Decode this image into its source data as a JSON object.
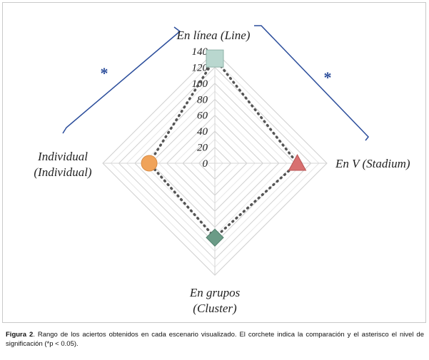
{
  "chart_data": {
    "type": "radar",
    "axes": [
      {
        "label_line1": "En línea (Line)",
        "label_line2": ""
      },
      {
        "label_line1": "En V (Stadium)",
        "label_line2": ""
      },
      {
        "label_line1": "En grupos",
        "label_line2": "(Cluster)"
      },
      {
        "label_line1": "Individual",
        "label_line2": "(Individual)"
      }
    ],
    "values": [
      131,
      103,
      93,
      82
    ],
    "rlim": [
      0,
      140
    ],
    "ticks": [
      0,
      20,
      40,
      60,
      80,
      100,
      120,
      140
    ],
    "minor_gridlines_per_major": 2,
    "markers": [
      {
        "shape": "square",
        "color": "#b9d7cf"
      },
      {
        "shape": "triangle",
        "color": "#d87070"
      },
      {
        "shape": "diamond",
        "color": "#6b9b87"
      },
      {
        "shape": "circle",
        "color": "#f0a35a"
      }
    ],
    "line_style": "dotted",
    "line_color": "#555555",
    "grid": true,
    "brackets": [
      {
        "between": [
          "Individual",
          "En línea"
        ],
        "label": "*",
        "color": "#2b4d9b"
      },
      {
        "between": [
          "En línea",
          "En V"
        ],
        "label": "*",
        "color": "#2b4d9b"
      }
    ]
  },
  "caption": {
    "figure_label": "Figura 2",
    "text": ". Rango de los aciertos obtenidos en cada escenario visualizado. El corchete indica la comparación y el asterisco el nivel de significación (*p < 0.05)."
  }
}
